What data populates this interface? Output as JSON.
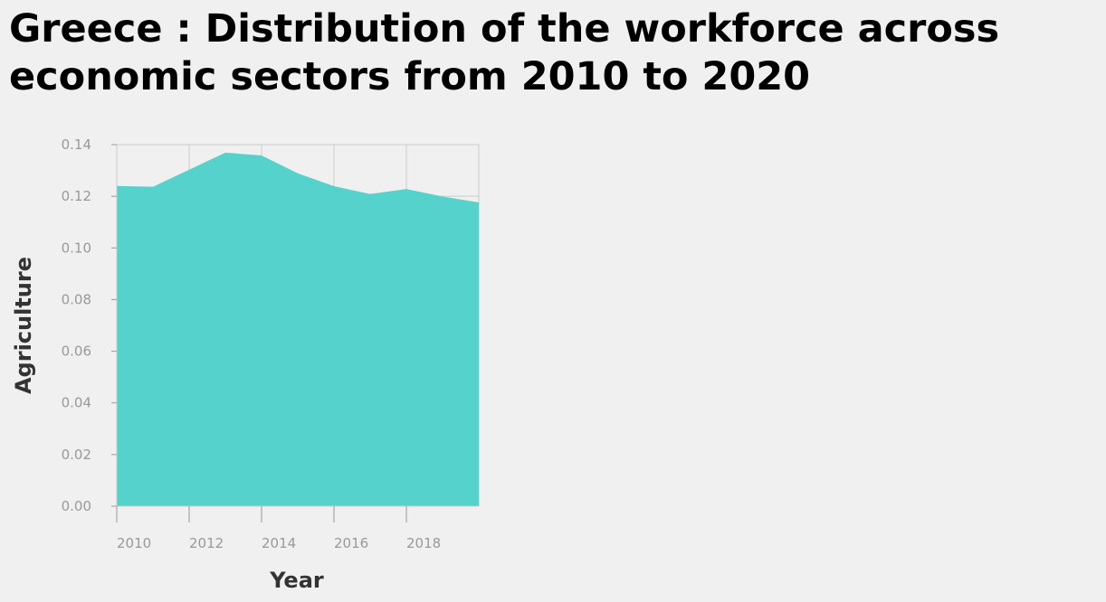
{
  "chart_data": {
    "type": "area",
    "title": "Greece : Distribution of the workforce across economic sectors from 2010 to 2020",
    "xlabel": "Year",
    "ylabel": "Agriculture",
    "x": [
      2010,
      2011,
      2012,
      2013,
      2014,
      2015,
      2016,
      2017,
      2018,
      2019,
      2020
    ],
    "series": [
      {
        "values": [
          0.124,
          0.1237,
          0.1303,
          0.1369,
          0.1358,
          0.1289,
          0.1239,
          0.1209,
          0.1228,
          0.1199,
          0.1176
        ]
      }
    ],
    "xlim": [
      2010,
      2020
    ],
    "ylim": [
      0,
      0.14
    ],
    "x_ticks": [
      "2010",
      "2012",
      "2014",
      "2016",
      "2018"
    ],
    "y_ticks": [
      "0.00",
      "0.02",
      "0.04",
      "0.06",
      "0.08",
      "0.10",
      "0.12",
      "0.14"
    ],
    "grid": true,
    "fill_color": "#55d2cb",
    "grid_color": "#cccccc"
  }
}
